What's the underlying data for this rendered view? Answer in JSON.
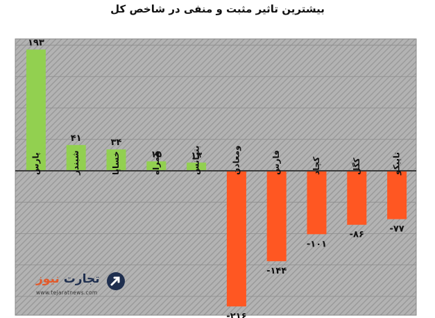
{
  "chart_data": {
    "type": "bar",
    "title": "بیشترین تاثیر مثبت و منفی در شاخص کل",
    "categories": [
      "پارس",
      "شبندر",
      "خساپا",
      "همراه",
      "بترانس",
      "ومعادن",
      "فارس",
      "کچاد",
      "کگل",
      "تاپیکو"
    ],
    "values": [
      193,
      41,
      34,
      15,
      13,
      -216,
      -144,
      -101,
      -86,
      -77
    ],
    "value_labels": [
      "۱۹۳",
      "۴۱",
      "۳۴",
      "۱۵",
      "۱۳",
      "-۲۱۶",
      "-۱۴۴",
      "-۱۰۱",
      "-۸۶",
      "-۷۷"
    ],
    "ylim": [
      -230,
      210
    ],
    "grid": true,
    "colors": {
      "positive": "#92d050",
      "negative": "#ff5722",
      "background": "#b3b3b3",
      "hatch": "#9a9a9a",
      "gridline": "#8c8c8c",
      "zero_line": "#3a3a3a"
    }
  },
  "logo": {
    "name_part1": "تجارت",
    "name_part2": "نیوز",
    "site": "www.tejaratnews.com",
    "icon": "arrow-up-right-circle-icon"
  }
}
